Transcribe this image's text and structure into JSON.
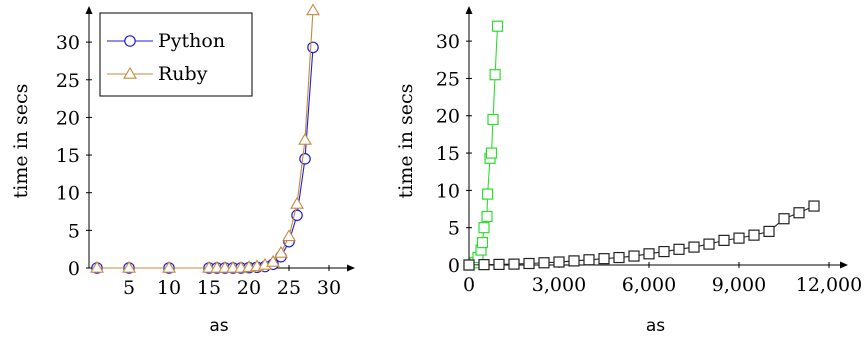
{
  "chart_data": [
    {
      "type": "line",
      "xlabel": "as",
      "ylabel": "time in secs",
      "xlim": [
        0,
        32.5
      ],
      "ylim": [
        0,
        34
      ],
      "xticks": [
        5,
        10,
        15,
        20,
        25,
        30
      ],
      "yticks": [
        0,
        5,
        10,
        15,
        20,
        25,
        30
      ],
      "xtick_labels": [
        "5",
        "10",
        "15",
        "20",
        "25",
        "30"
      ],
      "ytick_labels": [
        "0",
        "5",
        "10",
        "15",
        "20",
        "25",
        "30"
      ],
      "grid": false,
      "legend_position": "top-left",
      "series": [
        {
          "name": "Python",
          "color": "#1f1fd6",
          "marker": "circle",
          "x": [
            1,
            5,
            10,
            15,
            16,
            17,
            18,
            19,
            20,
            21,
            22,
            23,
            24,
            25,
            26,
            27,
            28
          ],
          "y": [
            0,
            0,
            0,
            0,
            0,
            0,
            0,
            0,
            0.05,
            0.1,
            0.2,
            0.5,
            1.5,
            3.5,
            7,
            14.5,
            29.3
          ]
        },
        {
          "name": "Ruby",
          "color": "#c68a3c",
          "marker": "triangle",
          "x": [
            1,
            5,
            10,
            15,
            16,
            17,
            18,
            19,
            20,
            21,
            22,
            23,
            24,
            25,
            26,
            27,
            28
          ],
          "y": [
            0,
            0,
            0,
            0,
            0,
            0,
            0,
            0,
            0.1,
            0.2,
            0.4,
            0.8,
            2,
            4.2,
            8.5,
            17,
            34.2
          ]
        }
      ]
    },
    {
      "type": "line",
      "xlabel": "as",
      "ylabel": "time in secs",
      "xlim": [
        0,
        12500
      ],
      "ylim": [
        0,
        33.5
      ],
      "xticks": [
        0,
        3000,
        6000,
        9000,
        12000
      ],
      "yticks": [
        0,
        5,
        10,
        15,
        20,
        25,
        30
      ],
      "xtick_labels": [
        "0",
        "3,000",
        "6,000",
        "9,000",
        "12,000"
      ],
      "ytick_labels": [
        "0",
        "5",
        "10",
        "15",
        "20",
        "25",
        "30"
      ],
      "grid": false,
      "series": [
        {
          "color": "#2fdc2f",
          "marker": "square",
          "x": [
            0,
            200,
            300,
            400,
            450,
            500,
            600,
            620,
            700,
            750,
            800,
            870,
            950
          ],
          "y": [
            0,
            0.3,
            1,
            2,
            3,
            5,
            6.5,
            9.5,
            14.3,
            15,
            19.5,
            25.5,
            32
          ]
        },
        {
          "color": "#222222",
          "marker": "square",
          "x": [
            0,
            500,
            1000,
            1500,
            2000,
            2500,
            3000,
            3500,
            4000,
            4500,
            5000,
            5500,
            6000,
            6500,
            7000,
            7500,
            8000,
            8500,
            9000,
            9500,
            10000,
            10500,
            11000,
            11500
          ],
          "y": [
            0,
            0.05,
            0.08,
            0.12,
            0.2,
            0.3,
            0.4,
            0.55,
            0.7,
            0.85,
            1,
            1.2,
            1.5,
            1.8,
            2.1,
            2.4,
            2.8,
            3.3,
            3.6,
            4,
            4.5,
            6.2,
            7,
            7.9
          ]
        }
      ]
    }
  ]
}
